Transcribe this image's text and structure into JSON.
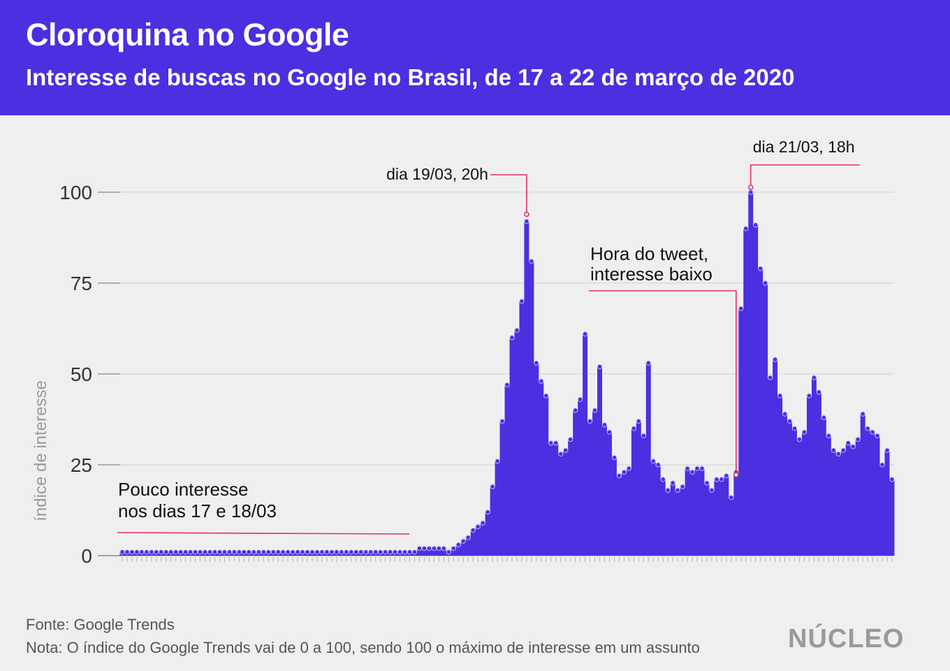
{
  "header": {
    "title": "Cloroquina no Google",
    "subtitle": "Interesse de buscas no Google no Brasil, de 17 a 22 de março de 2020"
  },
  "footer": {
    "source": "Fonte: Google Trends",
    "note": "Nota: O índice do Google Trends vai de 0 a 100, sendo 100 o máximo de interesse em um assunto",
    "logo": "NÚCLEO"
  },
  "colors": {
    "header_bg": "#4a30e0",
    "bar": "#4a30e0",
    "annotation": "#e0306a",
    "background": "#efefef",
    "grid": "#d6d6d6"
  },
  "chart_data": {
    "type": "area",
    "ylabel": "índice de interesse",
    "ylim": [
      0,
      100
    ],
    "yticks": [
      0,
      25,
      50,
      75,
      100
    ],
    "grid": true,
    "values": [
      1,
      1,
      1,
      1,
      1,
      1,
      1,
      1,
      1,
      1,
      1,
      1,
      1,
      1,
      1,
      1,
      1,
      1,
      1,
      1,
      1,
      1,
      1,
      1,
      1,
      1,
      1,
      1,
      1,
      1,
      1,
      1,
      1,
      1,
      1,
      1,
      1,
      1,
      1,
      1,
      1,
      1,
      1,
      1,
      1,
      1,
      1,
      1,
      1,
      1,
      1,
      1,
      1,
      1,
      1,
      1,
      1,
      1,
      1,
      1,
      1,
      2,
      2,
      2,
      2,
      2,
      2,
      1,
      2,
      3,
      4,
      5,
      7,
      8,
      9,
      12,
      19,
      26,
      37,
      47,
      60,
      62,
      70,
      92,
      81,
      53,
      48,
      44,
      31,
      31,
      28,
      29,
      32,
      40,
      43,
      61,
      37,
      40,
      52,
      36,
      34,
      27,
      22,
      23,
      24,
      35,
      37,
      33,
      53,
      26,
      25,
      21,
      18,
      20,
      18,
      19,
      24,
      23,
      24,
      24,
      20,
      18,
      21,
      21,
      22,
      16,
      23,
      68,
      90,
      100,
      91,
      79,
      75,
      49,
      54,
      44,
      39,
      37,
      35,
      32,
      34,
      44,
      49,
      45,
      38,
      33,
      29,
      28,
      29,
      31,
      30,
      32,
      39,
      35,
      34,
      33,
      25,
      29,
      21
    ],
    "annotations": [
      {
        "text": "dia 19/03, 20h",
        "index": 83,
        "value": 92
      },
      {
        "text": "dia 21/03, 18h",
        "index": 129,
        "value": 100
      },
      {
        "line1": "Hora do tweet,",
        "line2": "interesse baixo",
        "index": 126,
        "value": 23
      },
      {
        "line1": "Pouco interesse",
        "line2": "nos dias 17 e 18/03"
      }
    ]
  }
}
